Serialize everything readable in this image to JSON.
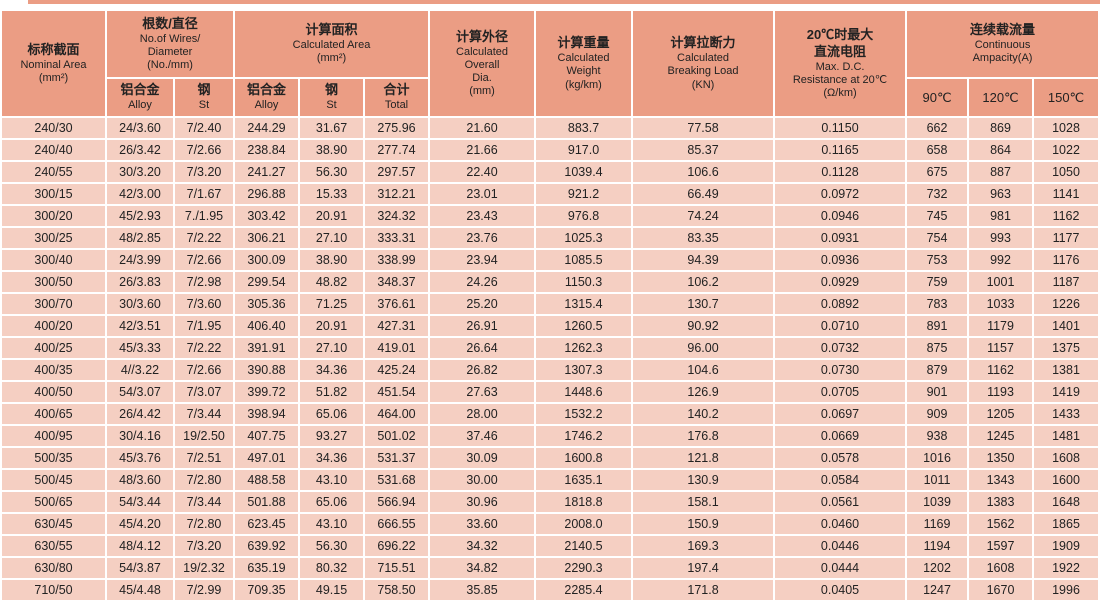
{
  "table": {
    "header": {
      "nominal": {
        "zh": "标称截面",
        "en": "Nominal Area\n(mm²)"
      },
      "wires": {
        "zh": "根数/直径",
        "en": "No.of Wires/\nDiameter\n(No./mm)"
      },
      "area": {
        "zh": "计算面积",
        "en": "Calculated Area\n(mm²)"
      },
      "dia": {
        "zh": "计算外径",
        "en": "Calculated\nOverall\nDia.\n(mm)"
      },
      "weight": {
        "zh": "计算重量",
        "en": "Calculated\nWeight\n(kg/km)"
      },
      "breaking": {
        "zh": "计算拉断力",
        "en": "Calculated\nBreaking Load\n(KN)"
      },
      "resistance": {
        "zh": "20℃时最大\n直流电阻",
        "en": "Max. D.C.\nResistance at 20℃\n(Ω/km)"
      },
      "ampacity": {
        "zh": "连续载流量",
        "en": "Continuous\nAmpacity(A)"
      },
      "sub": {
        "alloy_wires": {
          "zh": "铝合金",
          "en": "Alloy"
        },
        "st_wires": {
          "zh": "钢",
          "en": "St"
        },
        "alloy_area": {
          "zh": "铝合金",
          "en": "Alloy"
        },
        "st_area": {
          "zh": "钢",
          "en": "St"
        },
        "total_area": {
          "zh": "合计",
          "en": "Total"
        },
        "t90": "90℃",
        "t120": "120℃",
        "t150": "150℃"
      }
    },
    "rows": [
      [
        "240/30",
        "24/3.60",
        "7/2.40",
        "244.29",
        "31.67",
        "275.96",
        "21.60",
        "883.7",
        "77.58",
        "0.1150",
        "662",
        "869",
        "1028"
      ],
      [
        "240/40",
        "26/3.42",
        "7/2.66",
        "238.84",
        "38.90",
        "277.74",
        "21.66",
        "917.0",
        "85.37",
        "0.1165",
        "658",
        "864",
        "1022"
      ],
      [
        "240/55",
        "30/3.20",
        "7/3.20",
        "241.27",
        "56.30",
        "297.57",
        "22.40",
        "1039.4",
        "106.6",
        "0.1128",
        "675",
        "887",
        "1050"
      ],
      [
        "300/15",
        "42/3.00",
        "7/1.67",
        "296.88",
        "15.33",
        "312.21",
        "23.01",
        "921.2",
        "66.49",
        "0.0972",
        "732",
        "963",
        "1141"
      ],
      [
        "300/20",
        "45/2.93",
        "7./1.95",
        "303.42",
        "20.91",
        "324.32",
        "23.43",
        "976.8",
        "74.24",
        "0.0946",
        "745",
        "981",
        "1162"
      ],
      [
        "300/25",
        "48/2.85",
        "7/2.22",
        "306.21",
        "27.10",
        "333.31",
        "23.76",
        "1025.3",
        "83.35",
        "0.0931",
        "754",
        "993",
        "1177"
      ],
      [
        "300/40",
        "24/3.99",
        "7/2.66",
        "300.09",
        "38.90",
        "338.99",
        "23.94",
        "1085.5",
        "94.39",
        "0.0936",
        "753",
        "992",
        "1176"
      ],
      [
        "300/50",
        "26/3.83",
        "7/2.98",
        "299.54",
        "48.82",
        "348.37",
        "24.26",
        "1150.3",
        "106.2",
        "0.0929",
        "759",
        "1001",
        "1187"
      ],
      [
        "300/70",
        "30/3.60",
        "7/3.60",
        "305.36",
        "71.25",
        "376.61",
        "25.20",
        "1315.4",
        "130.7",
        "0.0892",
        "783",
        "1033",
        "1226"
      ],
      [
        "400/20",
        "42/3.51",
        "7/1.95",
        "406.40",
        "20.91",
        "427.31",
        "26.91",
        "1260.5",
        "90.92",
        "0.0710",
        "891",
        "1179",
        "1401"
      ],
      [
        "400/25",
        "45/3.33",
        "7/2.22",
        "391.91",
        "27.10",
        "419.01",
        "26.64",
        "1262.3",
        "96.00",
        "0.0732",
        "875",
        "1157",
        "1375"
      ],
      [
        "400/35",
        "4//3.22",
        "7/2.66",
        "390.88",
        "34.36",
        "425.24",
        "26.82",
        "1307.3",
        "104.6",
        "0.0730",
        "879",
        "1162",
        "1381"
      ],
      [
        "400/50",
        "54/3.07",
        "7/3.07",
        "399.72",
        "51.82",
        "451.54",
        "27.63",
        "1448.6",
        "126.9",
        "0.0705",
        "901",
        "1193",
        "1419"
      ],
      [
        "400/65",
        "26/4.42",
        "7/3.44",
        "398.94",
        "65.06",
        "464.00",
        "28.00",
        "1532.2",
        "140.2",
        "0.0697",
        "909",
        "1205",
        "1433"
      ],
      [
        "400/95",
        "30/4.16",
        "19/2.50",
        "407.75",
        "93.27",
        "501.02",
        "37.46",
        "1746.2",
        "176.8",
        "0.0669",
        "938",
        "1245",
        "1481"
      ],
      [
        "500/35",
        "45/3.76",
        "7/2.51",
        "497.01",
        "34.36",
        "531.37",
        "30.09",
        "1600.8",
        "121.8",
        "0.0578",
        "1016",
        "1350",
        "1608"
      ],
      [
        "500/45",
        "48/3.60",
        "7/2.80",
        "488.58",
        "43.10",
        "531.68",
        "30.00",
        "1635.1",
        "130.9",
        "0.0584",
        "1011",
        "1343",
        "1600"
      ],
      [
        "500/65",
        "54/3.44",
        "7/3.44",
        "501.88",
        "65.06",
        "566.94",
        "30.96",
        "1818.8",
        "158.1",
        "0.0561",
        "1039",
        "1383",
        "1648"
      ],
      [
        "630/45",
        "45/4.20",
        "7/2.80",
        "623.45",
        "43.10",
        "666.55",
        "33.60",
        "2008.0",
        "150.9",
        "0.0460",
        "1169",
        "1562",
        "1865"
      ],
      [
        "630/55",
        "48/4.12",
        "7/3.20",
        "639.92",
        "56.30",
        "696.22",
        "34.32",
        "2140.5",
        "169.3",
        "0.0446",
        "1194",
        "1597",
        "1909"
      ],
      [
        "630/80",
        "54/3.87",
        "19/2.32",
        "635.19",
        "80.32",
        "715.51",
        "34.82",
        "2290.3",
        "197.4",
        "0.0444",
        "1202",
        "1608",
        "1922"
      ],
      [
        "710/50",
        "45/4.48",
        "7/2.99",
        "709.35",
        "49.15",
        "758.50",
        "35.85",
        "2285.4",
        "171.8",
        "0.0405",
        "1247",
        "1670",
        "1996"
      ]
    ],
    "colors": {
      "header_bg": "#eb9d84",
      "row_bg": "#f5cfc2",
      "grid": "#ffffff",
      "text": "#222222"
    }
  }
}
